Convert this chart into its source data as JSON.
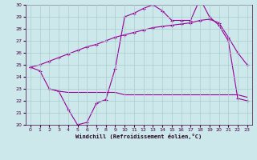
{
  "bg_color": "#cce8ea",
  "line_color": "#990099",
  "grid_color": "#aacccc",
  "xlabel": "Windchill (Refroidissement éolien,°C)",
  "xlim": [
    -0.5,
    23.5
  ],
  "ylim": [
    20,
    30
  ],
  "yticks": [
    20,
    21,
    22,
    23,
    24,
    25,
    26,
    27,
    28,
    29,
    30
  ],
  "xticks": [
    0,
    1,
    2,
    3,
    4,
    5,
    6,
    7,
    8,
    9,
    10,
    11,
    12,
    13,
    14,
    15,
    16,
    17,
    18,
    19,
    20,
    21,
    22,
    23
  ],
  "series1_x": [
    0,
    1,
    2,
    3,
    4,
    5,
    6,
    7,
    8,
    9,
    10,
    11,
    12,
    13,
    14,
    15,
    16,
    17,
    18,
    19,
    20,
    21,
    22,
    23
  ],
  "series1_y": [
    24.8,
    24.5,
    23.0,
    22.8,
    21.3,
    20.0,
    20.2,
    21.8,
    22.1,
    24.7,
    29.0,
    29.3,
    29.7,
    30.0,
    29.5,
    28.7,
    28.7,
    28.7,
    30.5,
    29.0,
    28.3,
    27.0,
    22.2,
    22.0
  ],
  "series2_x": [
    0,
    1,
    2,
    3,
    4,
    5,
    6,
    7,
    8,
    9,
    10,
    11,
    12,
    13,
    14,
    15,
    16,
    17,
    18,
    19,
    20,
    21,
    22,
    23
  ],
  "series2_y": [
    24.8,
    25.0,
    25.3,
    25.6,
    25.9,
    26.2,
    26.5,
    26.7,
    27.0,
    27.3,
    27.5,
    27.7,
    27.9,
    28.1,
    28.2,
    28.3,
    28.4,
    28.5,
    28.7,
    28.8,
    28.5,
    27.3,
    26.0,
    25.0
  ],
  "series3_x": [
    2,
    3,
    4,
    5,
    6,
    7,
    8,
    9,
    10,
    11,
    12,
    13,
    14,
    15,
    16,
    17,
    18,
    19,
    20,
    21,
    22,
    23
  ],
  "series3_y": [
    23.0,
    22.8,
    22.7,
    22.7,
    22.7,
    22.7,
    22.7,
    22.7,
    22.5,
    22.5,
    22.5,
    22.5,
    22.5,
    22.5,
    22.5,
    22.5,
    22.5,
    22.5,
    22.5,
    22.5,
    22.5,
    22.3
  ]
}
